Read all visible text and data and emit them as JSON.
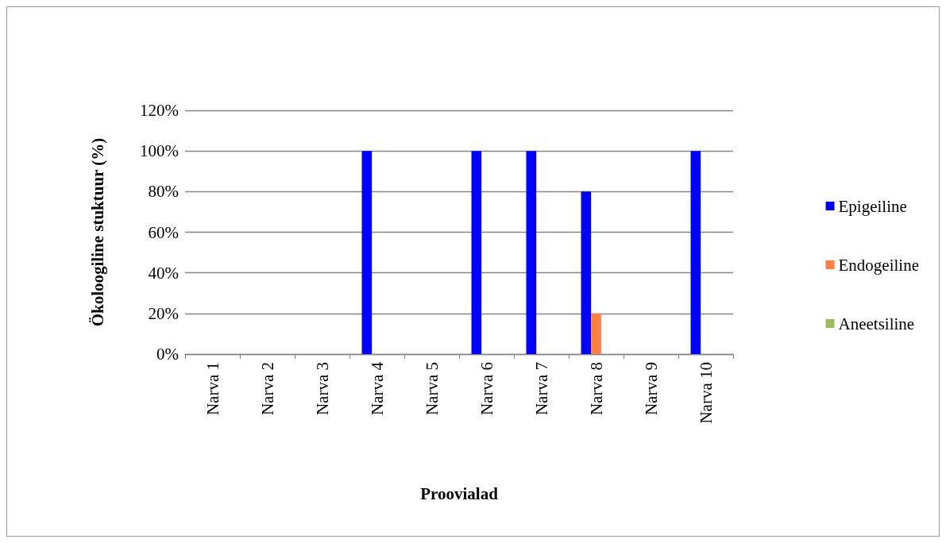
{
  "chart_data": {
    "type": "bar",
    "xlabel": "Proovialad",
    "ylabel": "Ökoloogiline stuktuur (%)",
    "categories": [
      "Narva 1",
      "Narva 2",
      "Narva 3",
      "Narva 4",
      "Narva 5",
      "Narva 6",
      "Narva 7",
      "Narva 8",
      "Narva 9",
      "Narva 10"
    ],
    "series": [
      {
        "name": "Epigeiline",
        "color": "#0000ff",
        "values": [
          0,
          0,
          0,
          100,
          0,
          100,
          100,
          80,
          0,
          100
        ]
      },
      {
        "name": "Endogeiline",
        "color": "#ff7f3f",
        "values": [
          0,
          0,
          0,
          0,
          0,
          0,
          0,
          20,
          0,
          0
        ]
      },
      {
        "name": "Aneetsiline",
        "color": "#9bbb59",
        "values": [
          0,
          0,
          0,
          0,
          0,
          0,
          0,
          0,
          0,
          0
        ]
      }
    ],
    "ylim": [
      0,
      120
    ],
    "yticks": [
      {
        "value": 0,
        "label": "0%"
      },
      {
        "value": 20,
        "label": "20%"
      },
      {
        "value": 40,
        "label": "40%"
      },
      {
        "value": 60,
        "label": "60%"
      },
      {
        "value": 80,
        "label": "80%"
      },
      {
        "value": 100,
        "label": "100%"
      },
      {
        "value": 120,
        "label": "120%"
      }
    ],
    "grid": "y",
    "legend": "right"
  }
}
